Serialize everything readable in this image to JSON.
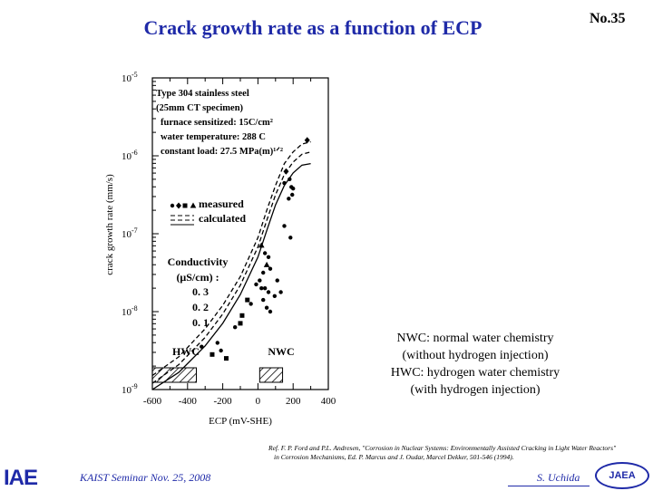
{
  "slide": {
    "title": "Crack growth rate as a function of ECP",
    "number": "No.35",
    "footer_left": "KAIST Seminar  Nov. 25, 2008",
    "footer_right": "S. Uchida",
    "logo_left": "IAE",
    "logo_right": "JAEA",
    "reference": [
      "Ref. F. P. Ford and P.L. Andresen, \"Corrosion in Nuclear Systems: Environmentally Assisted Cracking in Light Water Reactors\"",
      "in Corrosion Mechanisms, Ed. P. Marcus and J. Oudar, Marcel Dekker, 501-546 (1994)."
    ],
    "notes": [
      "NWC: normal water chemistry",
      "(without hydrogen injection)",
      "HWC: hydrogen water chemistry",
      "(with hydrogen injection)"
    ]
  },
  "chart_data": {
    "type": "scatter",
    "title": "",
    "xlabel": "ECP  (mV-SHE)",
    "ylabel": "crack growth rate  (mm/s)",
    "xlim": [
      -600,
      400
    ],
    "ylim_log10": [
      -9,
      -5
    ],
    "x_ticks": [
      -600,
      -400,
      -200,
      0,
      200,
      400
    ],
    "x_tick_labels": [
      "-600",
      "-400",
      "-200",
      "0",
      "200",
      "400"
    ],
    "y_ticks_log10": [
      -9,
      -8,
      -7,
      -6,
      -5
    ],
    "y_tick_labels": [
      {
        "base": "10",
        "exp": "-9"
      },
      {
        "base": "10",
        "exp": "-8"
      },
      {
        "base": "10",
        "exp": "-7"
      },
      {
        "base": "10",
        "exp": "-6"
      },
      {
        "base": "10",
        "exp": "-5"
      }
    ],
    "info_lines": [
      "Type 304 stainless steel",
      "(25mm CT specimen)",
      "furnace sensitized: 15C/cm²",
      "water temperature: 288 C",
      "constant load: 27.5 MPa(m)¹ᐟ²"
    ],
    "legend": {
      "measured": "measured",
      "calculated": "calculated"
    },
    "conductivity_label": [
      "Conductivity",
      "(μS/cm) :"
    ],
    "conductivity_values": [
      "0. 3",
      "0. 2",
      "0. 1"
    ],
    "region_labels": {
      "hwc": "HWC",
      "nwc": "NWC"
    },
    "regions": {
      "hwc": [
        -600,
        -350
      ],
      "nwc": [
        10,
        140
      ]
    },
    "curves": [
      {
        "name": "0.3",
        "style": "dashed",
        "points": [
          [
            -600,
            -8.82
          ],
          [
            -450,
            -8.58
          ],
          [
            -300,
            -8.22
          ],
          [
            -200,
            -7.92
          ],
          [
            -100,
            -7.55
          ],
          [
            0,
            -7.05
          ],
          [
            50,
            -6.7
          ],
          [
            100,
            -6.38
          ],
          [
            150,
            -6.1
          ],
          [
            200,
            -5.95
          ],
          [
            250,
            -5.85
          ],
          [
            300,
            -5.82
          ]
        ]
      },
      {
        "name": "0.2",
        "style": "dashed",
        "points": [
          [
            -600,
            -8.92
          ],
          [
            -450,
            -8.68
          ],
          [
            -300,
            -8.33
          ],
          [
            -200,
            -8.03
          ],
          [
            -100,
            -7.66
          ],
          [
            0,
            -7.17
          ],
          [
            50,
            -6.83
          ],
          [
            100,
            -6.5
          ],
          [
            150,
            -6.24
          ],
          [
            200,
            -6.08
          ],
          [
            250,
            -5.98
          ],
          [
            300,
            -5.95
          ]
        ]
      },
      {
        "name": "0.1",
        "style": "solid",
        "points": [
          [
            -600,
            -9.0
          ],
          [
            -450,
            -8.78
          ],
          [
            -300,
            -8.44
          ],
          [
            -200,
            -8.15
          ],
          [
            -100,
            -7.78
          ],
          [
            0,
            -7.3
          ],
          [
            50,
            -6.96
          ],
          [
            100,
            -6.63
          ],
          [
            150,
            -6.38
          ],
          [
            200,
            -6.22
          ],
          [
            250,
            -6.12
          ],
          [
            300,
            -6.1
          ]
        ]
      }
    ],
    "points": [
      {
        "x": 280,
        "y": -5.8,
        "marker": "diamond"
      },
      {
        "x": 150,
        "y": -6.35,
        "marker": "circle"
      },
      {
        "x": 180,
        "y": -6.3,
        "marker": "circle"
      },
      {
        "x": 190,
        "y": -6.4,
        "marker": "circle"
      },
      {
        "x": 195,
        "y": -6.5,
        "marker": "circle"
      },
      {
        "x": 200,
        "y": -6.42,
        "marker": "circle"
      },
      {
        "x": 175,
        "y": -6.55,
        "marker": "circle"
      },
      {
        "x": 160,
        "y": -6.2,
        "marker": "diamond"
      },
      {
        "x": 185,
        "y": -7.05,
        "marker": "circle"
      },
      {
        "x": 150,
        "y": -6.9,
        "marker": "circle"
      },
      {
        "x": 20,
        "y": -7.15,
        "marker": "triangle"
      },
      {
        "x": 40,
        "y": -7.25,
        "marker": "circle"
      },
      {
        "x": 60,
        "y": -7.3,
        "marker": "circle"
      },
      {
        "x": 50,
        "y": -7.4,
        "marker": "triangle"
      },
      {
        "x": 30,
        "y": -7.5,
        "marker": "circle"
      },
      {
        "x": 70,
        "y": -7.45,
        "marker": "circle"
      },
      {
        "x": 10,
        "y": -7.6,
        "marker": "circle"
      },
      {
        "x": 20,
        "y": -7.7,
        "marker": "circle"
      },
      {
        "x": 40,
        "y": -7.7,
        "marker": "circle"
      },
      {
        "x": 60,
        "y": -7.75,
        "marker": "circle"
      },
      {
        "x": 30,
        "y": -7.85,
        "marker": "circle"
      },
      {
        "x": 50,
        "y": -7.95,
        "marker": "circle"
      },
      {
        "x": 110,
        "y": -7.6,
        "marker": "circle"
      },
      {
        "x": 95,
        "y": -7.8,
        "marker": "circle"
      },
      {
        "x": 130,
        "y": -7.75,
        "marker": "circle"
      },
      {
        "x": -10,
        "y": -7.65,
        "marker": "circle"
      },
      {
        "x": -60,
        "y": -7.85,
        "marker": "square"
      },
      {
        "x": -90,
        "y": -8.05,
        "marker": "square"
      },
      {
        "x": -100,
        "y": -8.15,
        "marker": "square"
      },
      {
        "x": -130,
        "y": -8.2,
        "marker": "circle"
      },
      {
        "x": -40,
        "y": -7.9,
        "marker": "circle"
      },
      {
        "x": 70,
        "y": -8.0,
        "marker": "circle"
      },
      {
        "x": -210,
        "y": -8.5,
        "marker": "circle"
      },
      {
        "x": -230,
        "y": -8.4,
        "marker": "circle"
      },
      {
        "x": -260,
        "y": -8.55,
        "marker": "square"
      },
      {
        "x": -320,
        "y": -8.45,
        "marker": "circle"
      },
      {
        "x": -180,
        "y": -8.6,
        "marker": "square"
      }
    ]
  }
}
